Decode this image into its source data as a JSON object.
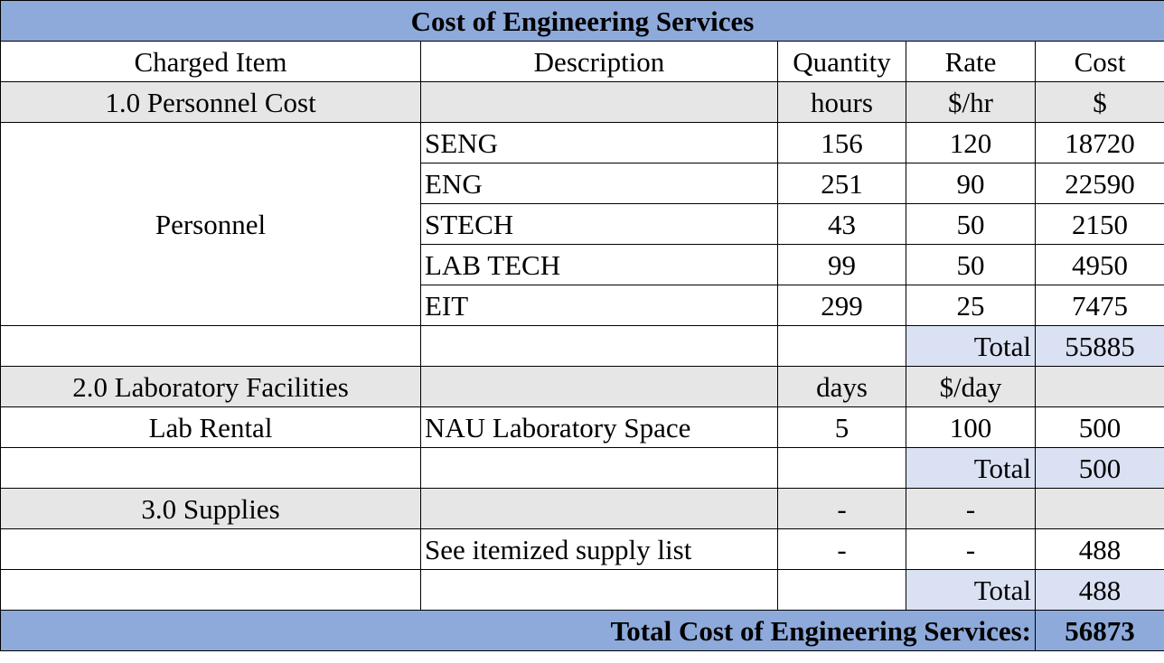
{
  "title": "Cost of Engineering Services",
  "headers": {
    "item": "Charged Item",
    "description": "Description",
    "quantity": "Quantity",
    "rate": "Rate",
    "cost": "Cost"
  },
  "personnel": {
    "section_label": "1.0 Personnel Cost",
    "quantity_unit": "hours",
    "rate_unit": "$/hr",
    "cost_unit": "$",
    "item_label": "Personnel",
    "rows": [
      {
        "description": "SENG",
        "quantity": "156",
        "rate": "120",
        "cost": "18720"
      },
      {
        "description": "ENG",
        "quantity": "251",
        "rate": "90",
        "cost": "22590"
      },
      {
        "description": "STECH",
        "quantity": "43",
        "rate": "50",
        "cost": "2150"
      },
      {
        "description": "LAB TECH",
        "quantity": "99",
        "rate": "50",
        "cost": "4950"
      },
      {
        "description": "EIT",
        "quantity": "299",
        "rate": "25",
        "cost": "7475"
      }
    ],
    "total_label": "Total",
    "total": "55885"
  },
  "lab": {
    "section_label": "2.0 Laboratory Facilities",
    "quantity_unit": "days",
    "rate_unit": "$/day",
    "item_label": "Lab Rental",
    "description": "NAU Laboratory Space",
    "quantity": "5",
    "rate": "100",
    "cost": "500",
    "total_label": "Total",
    "total": "500"
  },
  "supplies": {
    "section_label": "3.0 Supplies",
    "quantity_unit": "-",
    "rate_unit": "-",
    "description": "See itemized supply list",
    "quantity": "-",
    "rate": "-",
    "cost": "488",
    "total_label": "Total",
    "total": "488"
  },
  "grand_total": {
    "label": "Total Cost of Engineering Services:",
    "value": "56873"
  },
  "colors": {
    "header_blue": "#8eaadb",
    "section_gray": "#e7e6e6",
    "total_light_blue": "#d9e1f2"
  }
}
